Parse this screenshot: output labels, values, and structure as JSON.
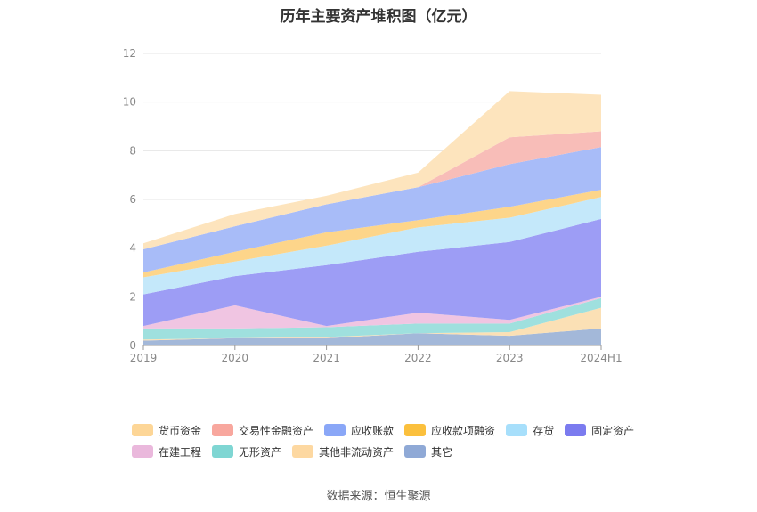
{
  "title": "历年主要资产堆积图（亿元）",
  "source": "数据来源：恒生聚源",
  "chart_data": {
    "type": "area",
    "stacked": true,
    "title": "历年主要资产堆积图（亿元）",
    "xlabel": "",
    "ylabel": "",
    "categories": [
      "2019",
      "2020",
      "2021",
      "2022",
      "2023",
      "2024H1"
    ],
    "ylim": [
      0,
      12
    ],
    "yticks": [
      0,
      2,
      4,
      6,
      8,
      10,
      12
    ],
    "grid": true,
    "legend_position": "bottom",
    "series": [
      {
        "name": "其它",
        "color": "#a3b8d9",
        "values": [
          0.2,
          0.3,
          0.3,
          0.5,
          0.4,
          0.7
        ]
      },
      {
        "name": "其他非流动资产",
        "color": "#fbe0b5",
        "values": [
          0.05,
          0.0,
          0.05,
          0.0,
          0.15,
          0.85
        ]
      },
      {
        "name": "无形资产",
        "color": "#9fe0de",
        "values": [
          0.45,
          0.4,
          0.4,
          0.4,
          0.35,
          0.4
        ]
      },
      {
        "name": "在建工程",
        "color": "#f0c5e2",
        "values": [
          0.1,
          0.95,
          0.05,
          0.45,
          0.15,
          0.05
        ]
      },
      {
        "name": "固定资产",
        "color": "#9d9df5",
        "values": [
          1.3,
          1.2,
          2.5,
          2.5,
          3.2,
          3.2
        ]
      },
      {
        "name": "存货",
        "color": "#c4e8fa",
        "values": [
          0.7,
          0.6,
          0.8,
          1.0,
          1.0,
          0.9
        ]
      },
      {
        "name": "应收款项融资",
        "color": "#fdd58a",
        "values": [
          0.2,
          0.4,
          0.55,
          0.3,
          0.45,
          0.3
        ]
      },
      {
        "name": "应收账款",
        "color": "#a8bcf8",
        "values": [
          0.95,
          1.05,
          1.15,
          1.35,
          1.75,
          1.75
        ]
      },
      {
        "name": "交易性金融资产",
        "color": "#f8bdb8",
        "values": [
          0.0,
          0.0,
          0.0,
          0.0,
          1.1,
          0.65
        ]
      },
      {
        "name": "货币资金",
        "color": "#fde4bd",
        "values": [
          0.25,
          0.5,
          0.35,
          0.6,
          1.9,
          1.5
        ]
      }
    ]
  },
  "legend_rows": [
    [
      {
        "label": "货币资金",
        "color": "#fdd697"
      },
      {
        "label": "交易性金融资产",
        "color": "#f8a79e"
      },
      {
        "label": "应收账款",
        "color": "#8aa7f7"
      },
      {
        "label": "应收款项融资",
        "color": "#fbc03d"
      },
      {
        "label": "存货",
        "color": "#a7dffb"
      },
      {
        "label": "固定资产",
        "color": "#7b7bef"
      }
    ],
    [
      {
        "label": "在建工程",
        "color": "#eab8dc"
      },
      {
        "label": "无形资产",
        "color": "#7fd6d3"
      },
      {
        "label": "其他非流动资产",
        "color": "#fdd8a1"
      },
      {
        "label": "其它",
        "color": "#8fa9d6"
      }
    ]
  ]
}
